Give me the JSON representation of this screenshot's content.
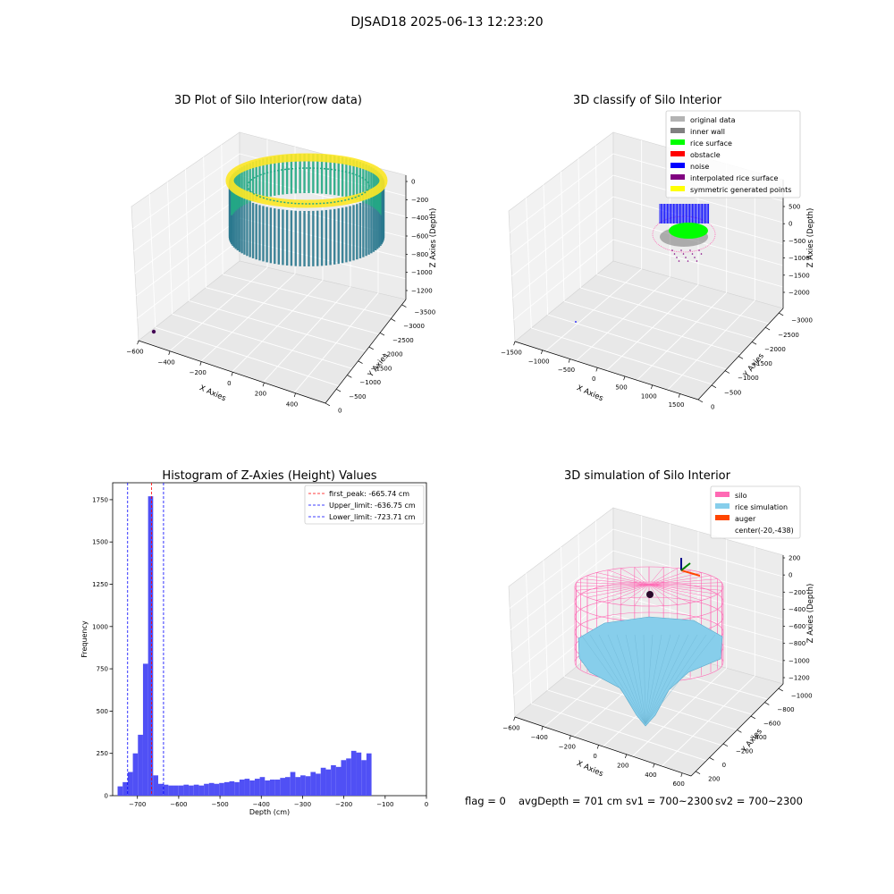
{
  "figure_title": "DJSAD18 2025-06-13 12:23:20",
  "status": {
    "flag": "flag = 0",
    "avg_depth": "avgDepth = 701 cm",
    "sv1": "sv1 = 700~2300",
    "sv2": "sv2 = 700~2300"
  },
  "colors": {
    "viridis_low": "#2a788e",
    "viridis_mid": "#22a884",
    "viridis_high": "#fde725",
    "original_data": "#b3b3b3",
    "inner_wall": "#808080",
    "rice_surface": "#00ff00",
    "obstacle": "#ff0000",
    "noise": "#0000ff",
    "interpolated_rice_surface": "#800080",
    "symmetric_generated_points": "#ffff00",
    "silo": "#ff69b4",
    "rice_simulation": "#87ceeb",
    "auger": "#ff4500",
    "histogram_bar": "#5050f5",
    "first_peak_line": "#ff0000",
    "limit_lines": "#0000ff"
  },
  "chart_data": [
    {
      "type": "scatter",
      "title": "3D Plot of Silo Interior(row data)",
      "xlabel": "X Axies",
      "ylabel": "Y Axies",
      "zlabel": "Z Axies (Depth)",
      "x_ticks": [
        "−600",
        "−400",
        "−200",
        "0",
        "200",
        "400"
      ],
      "y_ticks": [
        "0",
        "−500",
        "−1000",
        "−1500",
        "−2000",
        "−2500",
        "−3000",
        "−3500"
      ],
      "z_ticks": [
        "0",
        "−200",
        "−400",
        "−600",
        "−800",
        "−1000",
        "−1200"
      ],
      "colormap": "viridis"
    },
    {
      "type": "scatter",
      "title": "3D classify of Silo Interior",
      "xlabel": "X Axies",
      "ylabel": "Y Axies",
      "zlabel": "Z Axies (Depth)",
      "x_ticks": [
        "−1500",
        "−1000",
        "−500",
        "0",
        "500",
        "1000",
        "1500"
      ],
      "y_ticks": [
        "0",
        "−500",
        "−1000",
        "−1500",
        "−2000",
        "−2500",
        "−3000"
      ],
      "z_ticks": [
        "500",
        "0",
        "−500",
        "−1000",
        "−1500",
        "−2000"
      ],
      "z_tick_hidden": "1000",
      "legend": [
        "original data",
        "inner wall",
        "rice surface",
        "obstacle",
        "noise",
        "interpolated rice surface",
        "symmetric generated points"
      ],
      "legend_placement": "upper-right"
    },
    {
      "type": "bar",
      "title": "Histogram of Z-Axies (Height) Values",
      "xlabel": "Depth (cm)",
      "ylabel": "Frequency",
      "xlim": [
        -760,
        0
      ],
      "ylim": [
        0,
        1850
      ],
      "x_ticks": [
        "−700",
        "−600",
        "−500",
        "−400",
        "−300",
        "−200",
        "−100",
        "0"
      ],
      "y_ticks": [
        "0",
        "250",
        "500",
        "750",
        "1000",
        "1250",
        "1500",
        "1750"
      ],
      "bin_start": -748,
      "bin_width": 12.3,
      "values": [
        55,
        80,
        140,
        250,
        360,
        780,
        1770,
        120,
        70,
        65,
        60,
        60,
        60,
        65,
        60,
        65,
        60,
        70,
        75,
        70,
        75,
        80,
        85,
        80,
        95,
        100,
        90,
        100,
        110,
        90,
        95,
        95,
        105,
        110,
        140,
        110,
        120,
        115,
        140,
        130,
        165,
        155,
        180,
        170,
        210,
        220,
        265,
        255,
        210,
        250
      ],
      "vlines": [
        {
          "label": "first_peak: -665.74 cm",
          "x": -665.74,
          "color": "#ff0000"
        },
        {
          "label": "Upper_limit: -636.75 cm",
          "x": -636.75,
          "color": "#0000ff"
        },
        {
          "label": "Lower_limit: -723.71 cm",
          "x": -723.71,
          "color": "#0000ff"
        }
      ],
      "legend_placement": "upper-right"
    },
    {
      "type": "surface",
      "title": "3D simulation of Silo Interior",
      "xlabel": "X Axies",
      "ylabel": "Y Axies",
      "zlabel": "Z Axies (Depth)",
      "x_ticks": [
        "−600",
        "−400",
        "−200",
        "0",
        "200",
        "400",
        "600"
      ],
      "y_ticks": [
        "200",
        "0",
        "−200",
        "−400",
        "−600",
        "−800",
        "−1000"
      ],
      "z_ticks": [
        "200",
        "0",
        "−200",
        "−400",
        "−600",
        "−800",
        "−1000",
        "−1200"
      ],
      "legend": [
        "silo",
        "rice simulation",
        "auger",
        "center(-20,-438)"
      ],
      "legend_placement": "upper-right"
    }
  ]
}
